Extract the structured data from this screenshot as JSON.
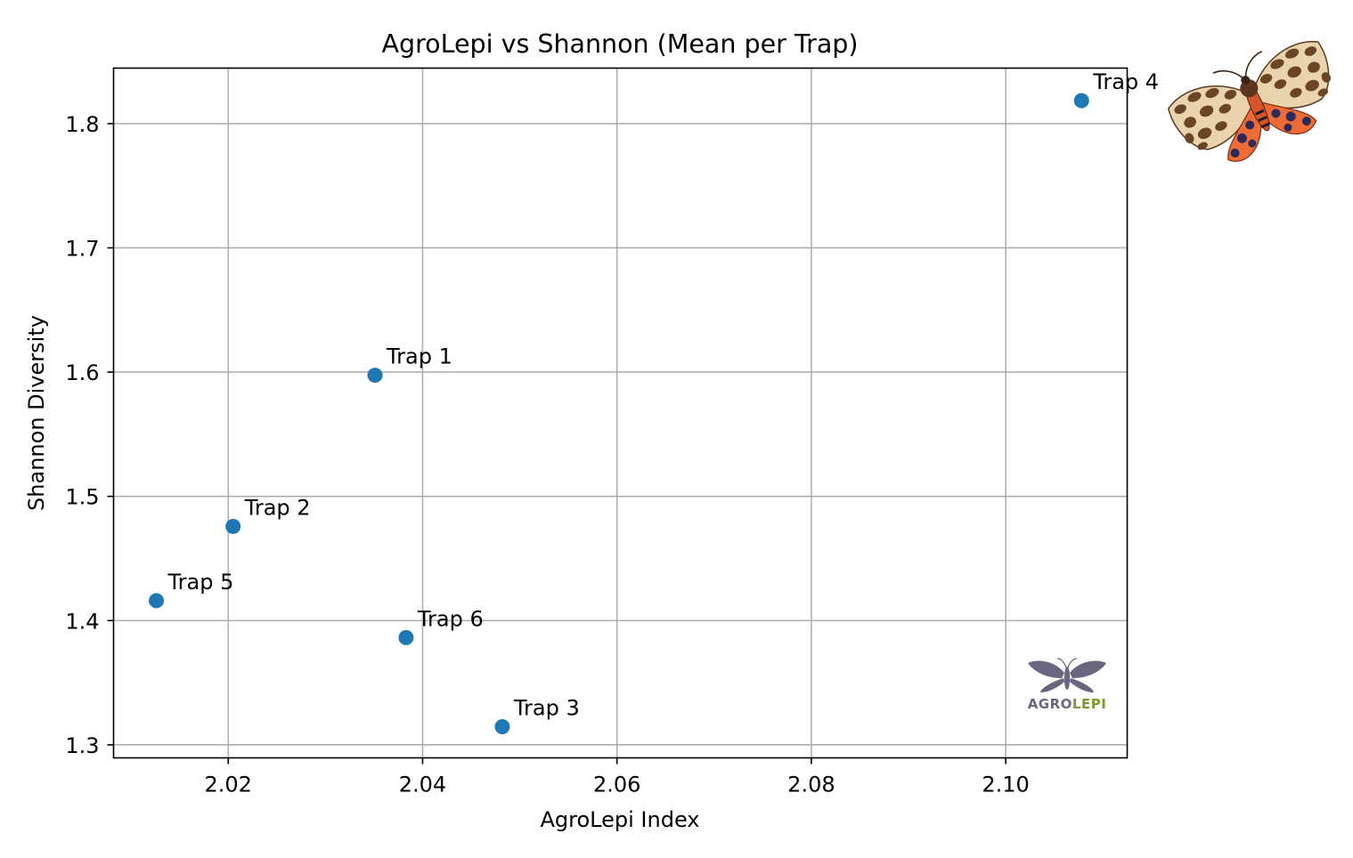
{
  "chart_data": {
    "type": "scatter",
    "title": "AgroLepi vs Shannon (Mean per Trap)",
    "xlabel": "AgroLepi Index",
    "ylabel": "Shannon Diversity",
    "xlim": [
      2.0082,
      2.1125
    ],
    "ylim": [
      1.2895,
      1.8447
    ],
    "xticks": [
      2.02,
      2.04,
      2.06,
      2.08,
      2.1
    ],
    "xtick_labels": [
      "2.02",
      "2.04",
      "2.06",
      "2.08",
      "2.10"
    ],
    "yticks": [
      1.3,
      1.4,
      1.5,
      1.6,
      1.7,
      1.8
    ],
    "ytick_labels": [
      "1.3",
      "1.4",
      "1.5",
      "1.6",
      "1.7",
      "1.8"
    ],
    "grid": true,
    "marker_color": "#1f77b4",
    "points": [
      {
        "label": "Trap 1",
        "x": 2.0351,
        "y": 1.5975
      },
      {
        "label": "Trap 2",
        "x": 2.0205,
        "y": 1.4758
      },
      {
        "label": "Trap 3",
        "x": 2.0482,
        "y": 1.3146
      },
      {
        "label": "Trap 4",
        "x": 2.1078,
        "y": 1.8185
      },
      {
        "label": "Trap 5",
        "x": 2.0126,
        "y": 1.416
      },
      {
        "label": "Trap 6",
        "x": 2.0383,
        "y": 1.3863
      }
    ]
  },
  "logo": {
    "name": "agrolepi-logo",
    "text_part1": "AGRO",
    "text_part2": "LEPI",
    "color_part1": "#6b6680",
    "color_part2": "#7d9a2e"
  },
  "moth_illustration": {
    "name": "tiger-moth-icon"
  }
}
